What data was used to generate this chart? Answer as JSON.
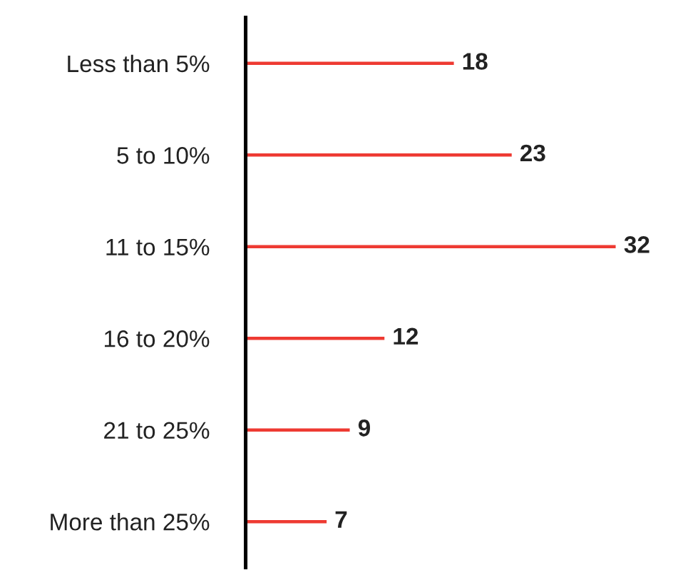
{
  "chart_data": {
    "type": "bar",
    "orientation": "horizontal",
    "data_labels": true,
    "categories": [
      "Less than 5%",
      "5 to 10%",
      "11 to 15%",
      "16 to 20%",
      "21 to 25%",
      "More than 25%"
    ],
    "values": [
      18,
      23,
      32,
      12,
      9,
      7
    ],
    "color": "#ee3a32"
  }
}
